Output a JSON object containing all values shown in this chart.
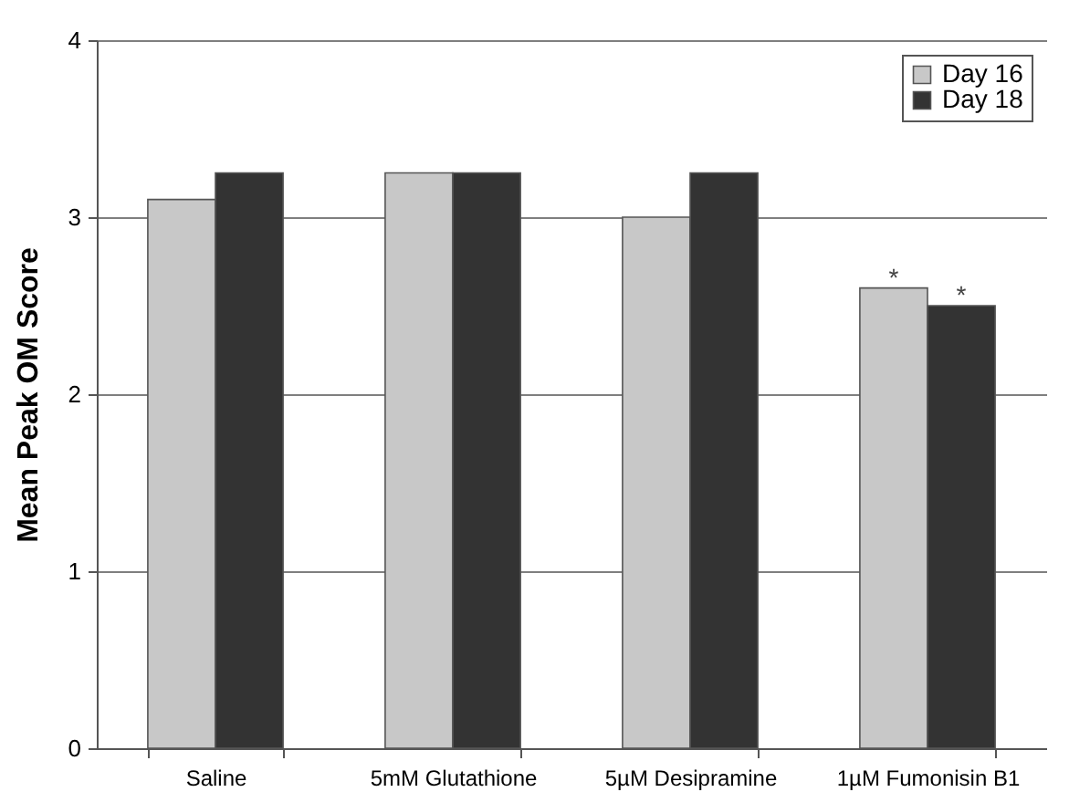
{
  "chart_data": {
    "type": "bar",
    "ylabel": "Mean Peak OM Score",
    "categories": [
      "Saline",
      "5mM Glutathione",
      "5µM Desipramine",
      "1µM Fumonisin B1"
    ],
    "series": [
      {
        "name": "Day 16",
        "color": "#c8c8c8",
        "values": [
          3.1,
          3.25,
          3.0,
          2.6
        ]
      },
      {
        "name": "Day 18",
        "color": "#333333",
        "values": [
          3.25,
          3.25,
          3.25,
          2.5
        ]
      }
    ],
    "ylim": [
      0,
      4
    ],
    "yticks": [
      0,
      1,
      2,
      3,
      4
    ],
    "grid": "y",
    "legend": "top right",
    "annotations": [
      {
        "text": "*",
        "x": "1µM Fumonisin B1",
        "y": 2.6
      },
      {
        "text": "*",
        "x": "1µM Fumonisin B1",
        "y": 2.5
      }
    ]
  }
}
